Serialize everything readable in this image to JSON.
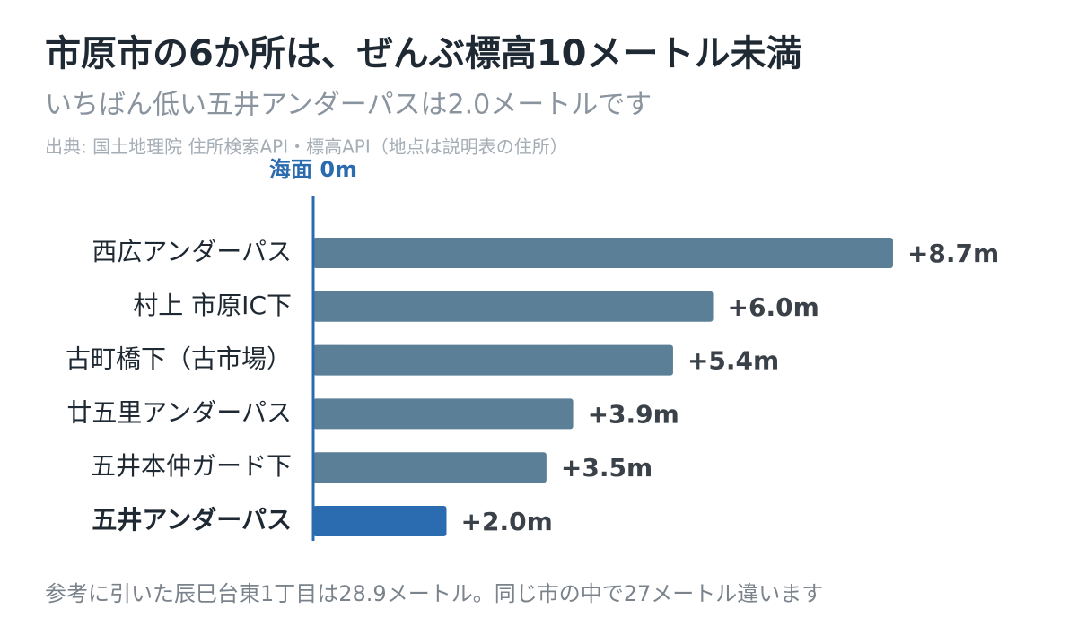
{
  "chart_data": {
    "type": "hbar",
    "title": "市原市の6か所は、ぜんぶ標高10メートル未満",
    "subtitle": "いちばん低い五井アンダーパスは2.0メートルです",
    "source": "出典: 国土地理院 住所検索API・標高API（地点は説明表の住所）",
    "annotation": "海面 0m",
    "note": "参考に引いた辰巳台東1丁目は28.9メートル。同じ市の中で27メートル違います",
    "categories": [
      "西広アンダーパス",
      "村上 市原IC下",
      "古町橋下（古市場）",
      "廿五里アンダーパス",
      "五井本仲ガード下",
      "五井アンダーパス"
    ],
    "values": [
      8.7,
      6.0,
      5.4,
      3.9,
      3.5,
      2.0
    ],
    "value_labels": [
      "+8.7m",
      "+6.0m",
      "+5.4m",
      "+3.9m",
      "+3.5m",
      "+2.0m"
    ],
    "colors": [
      "#5b7f96",
      "#5b7f96",
      "#5b7f96",
      "#5b7f96",
      "#5b7f96",
      "#2b6cb0"
    ],
    "highlight": 5,
    "xlim": [
      0,
      10
    ]
  }
}
